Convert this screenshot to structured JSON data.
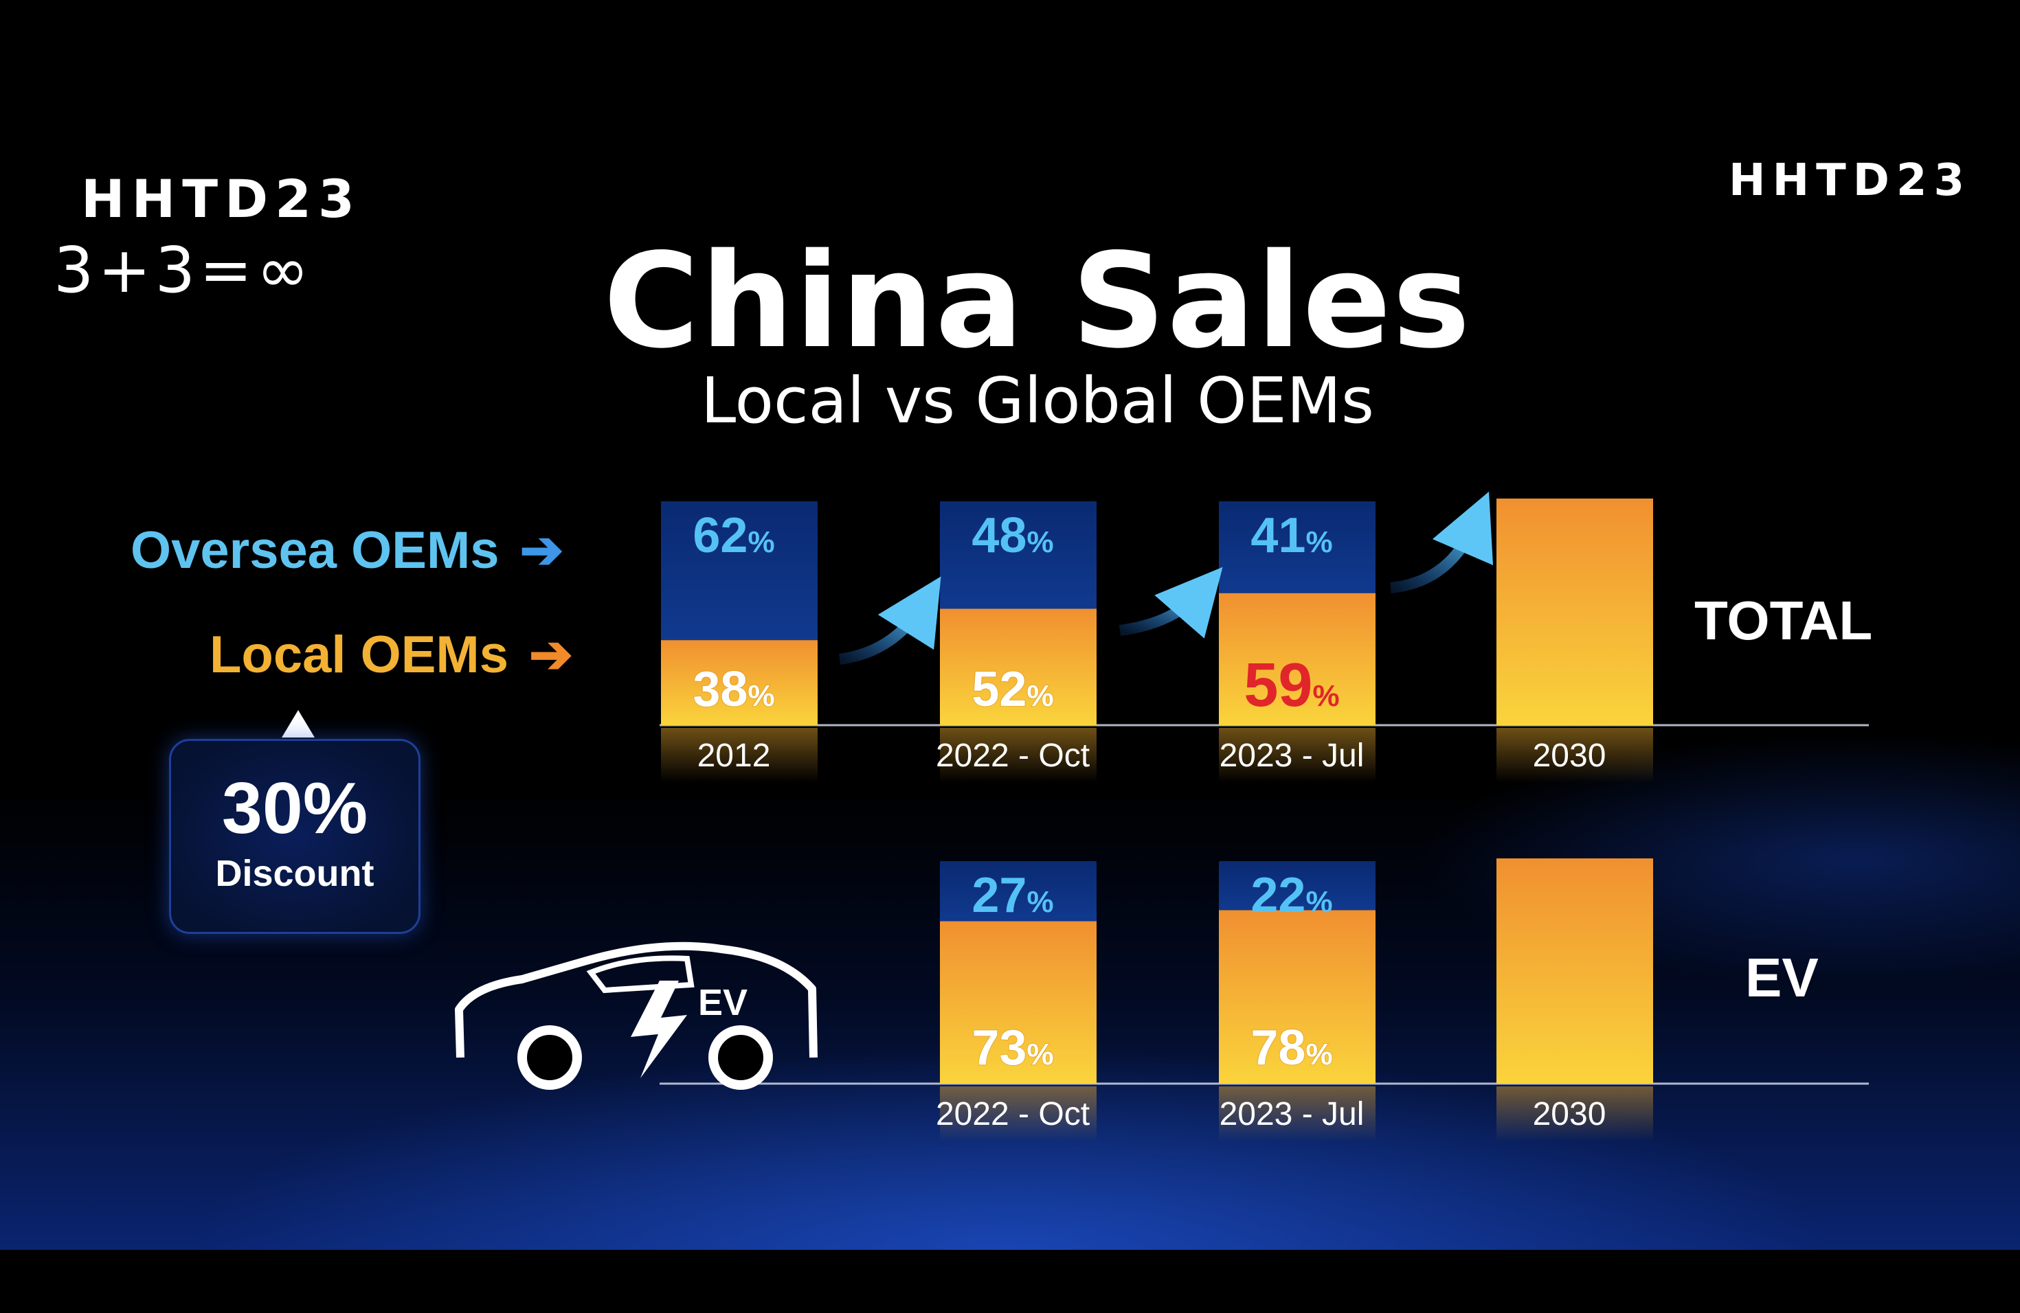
{
  "slide": {
    "logo_left_line1": "HHTD23",
    "logo_left_line2": "3+3=∞",
    "logo_right": "HHTD23",
    "title": "China Sales",
    "subtitle": "Local vs Global OEMs"
  },
  "legend": {
    "oversea_label": "Oversea OEMs",
    "local_label": "Local OEMs",
    "arrow_glyph": "➔"
  },
  "callout": {
    "value": "30%",
    "label": "Discount"
  },
  "colors": {
    "oversea": "#0c2d78",
    "local_top": "#f09030",
    "local_bottom": "#fad43c",
    "oversea_text": "#55c2f5",
    "local_text": "#ffffff",
    "highlight_text": "#e0262a"
  },
  "chart_data": [
    {
      "type": "bar",
      "stacked": true,
      "name": "TOTAL",
      "categories": [
        "2012",
        "2022 - Oct",
        "2023 - Jul",
        "2030"
      ],
      "series": [
        {
          "name": "Local OEMs",
          "values": [
            38,
            52,
            59,
            null
          ]
        },
        {
          "name": "Oversea OEMs",
          "values": [
            62,
            48,
            41,
            null
          ]
        }
      ],
      "highlight": {
        "series": "Local OEMs",
        "category": "2023 - Jul"
      },
      "ylim": [
        0,
        100
      ]
    },
    {
      "type": "bar",
      "stacked": true,
      "name": "EV",
      "categories": [
        "2022 - Oct",
        "2023 - Jul",
        "2030"
      ],
      "series": [
        {
          "name": "Local OEMs",
          "values": [
            73,
            78,
            null
          ]
        },
        {
          "name": "Oversea OEMs",
          "values": [
            27,
            22,
            null
          ]
        }
      ],
      "ylim": [
        0,
        100
      ]
    }
  ],
  "percent_symbol": "%",
  "ev_icon_text": "EV"
}
